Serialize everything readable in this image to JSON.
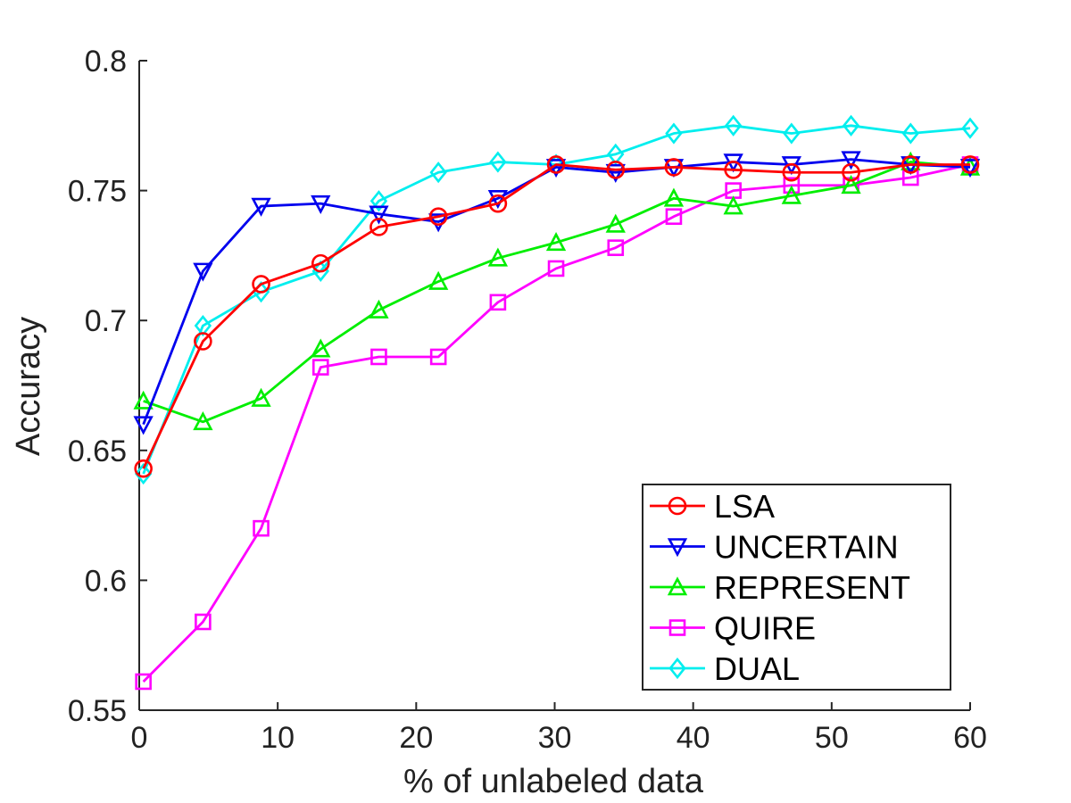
{
  "chart_data": {
    "type": "line",
    "title": "",
    "xlabel": "% of unlabeled data",
    "ylabel": "Accuracy",
    "xlim": [
      0,
      60
    ],
    "ylim": [
      0.55,
      0.8
    ],
    "xticks": [
      0,
      10,
      20,
      30,
      40,
      50,
      60
    ],
    "yticks": [
      0.55,
      0.6,
      0.65,
      0.7,
      0.75,
      0.8
    ],
    "xtick_labels": [
      "0",
      "10",
      "20",
      "30",
      "40",
      "50",
      "60"
    ],
    "ytick_labels": [
      "0.55",
      "0.6",
      "0.65",
      "0.7",
      "0.75",
      "0.8"
    ],
    "grid": false,
    "legend_position": "bottom-right",
    "x": [
      0.3,
      4.6,
      8.8,
      13.1,
      17.3,
      21.6,
      25.9,
      30.1,
      34.4,
      38.6,
      42.9,
      47.1,
      51.4,
      55.7,
      60.0
    ],
    "series": [
      {
        "name": "LSA",
        "color": "#ff0000",
        "marker": "circle",
        "values": [
          0.643,
          0.692,
          0.714,
          0.722,
          0.736,
          0.74,
          0.745,
          0.76,
          0.758,
          0.759,
          0.758,
          0.757,
          0.757,
          0.76,
          0.76
        ]
      },
      {
        "name": "UNCERTAIN",
        "color": "#0000ee",
        "marker": "triangle-down",
        "values": [
          0.66,
          0.719,
          0.744,
          0.745,
          0.741,
          0.738,
          0.747,
          0.759,
          0.757,
          0.759,
          0.761,
          0.76,
          0.762,
          0.76,
          0.759
        ]
      },
      {
        "name": "REPRESENT",
        "color": "#00ee00",
        "marker": "triangle-up",
        "values": [
          0.669,
          0.661,
          0.67,
          0.689,
          0.704,
          0.715,
          0.724,
          0.73,
          0.737,
          0.747,
          0.744,
          0.748,
          0.752,
          0.761,
          0.759
        ]
      },
      {
        "name": "QUIRE",
        "color": "#ff00ff",
        "marker": "square",
        "values": [
          0.561,
          0.584,
          0.62,
          0.682,
          0.686,
          0.686,
          0.707,
          0.72,
          0.728,
          0.74,
          0.75,
          0.752,
          0.752,
          0.755,
          0.76
        ]
      },
      {
        "name": "DUAL",
        "color": "#00eeee",
        "marker": "diamond",
        "values": [
          0.641,
          0.698,
          0.711,
          0.719,
          0.746,
          0.757,
          0.761,
          0.76,
          0.764,
          0.772,
          0.775,
          0.772,
          0.775,
          0.772,
          0.774
        ]
      }
    ]
  }
}
